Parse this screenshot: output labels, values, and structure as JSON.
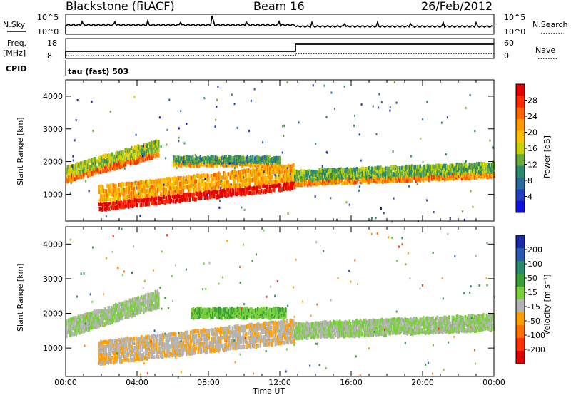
{
  "header": {
    "title": "Blackstone (fitACF)",
    "beam": "Beam 16",
    "date": "26/Feb/2012"
  },
  "noise_panel": {
    "left_label": "N.Sky",
    "right_label": "N.Search",
    "ticks": [
      "10^5",
      "10^0"
    ]
  },
  "freq_panel": {
    "left_label_1": "Freq.",
    "left_label_2": "[MHz]",
    "left_ticks": [
      "18",
      "8"
    ],
    "right_label": "Nave",
    "right_ticks": [
      "60",
      "0"
    ]
  },
  "cpid": {
    "label": "CPID",
    "value": "tau (fast) 503"
  },
  "power_panel": {
    "ylabel": "Slant Range [km]",
    "colorbar_label": "Power [dB]",
    "colorbar_ticks": [
      "28",
      "24",
      "20",
      "16",
      "12",
      "8",
      "4"
    ],
    "colorbar_colors": [
      "#e60000",
      "#ff2a00",
      "#ff6400",
      "#ff9a00",
      "#ffc000",
      "#c8d200",
      "#6aaa3a",
      "#2c8a6e",
      "#2a6aa0",
      "#2040c0",
      "#1010e0"
    ]
  },
  "velocity_panel": {
    "ylabel": "Slant Range [km]",
    "colorbar_label": "Velocity [m s⁻¹]",
    "colorbar_ticks": [
      "200",
      "100",
      "50",
      "15",
      "-15",
      "-50",
      "-100",
      "-200"
    ],
    "colorbar_colors": [
      "#1a2aa8",
      "#2a5ab0",
      "#2a8a70",
      "#3aa03a",
      "#7ad03a",
      "#b4b4b4",
      "#ffa000",
      "#ff7000",
      "#ff3000",
      "#e00000"
    ]
  },
  "xaxis": {
    "label": "Time UT",
    "ticks": [
      "00:00",
      "04:00",
      "08:00",
      "12:00",
      "16:00",
      "20:00",
      "00:00"
    ]
  },
  "chart_data": [
    {
      "type": "heatmap",
      "title": "Power",
      "ylabel": "Slant Range [km]",
      "xlabel": "Time UT",
      "ylim": [
        180,
        4500
      ],
      "yticks": [
        1000,
        2000,
        3000,
        4000
      ],
      "xlim_hours": [
        0,
        24
      ],
      "colorbar": "Power [dB]",
      "color_range": [
        0,
        30
      ],
      "bands": [
        {
          "t": [
            0,
            5.2
          ],
          "r0": [
            1400,
            2200
          ],
          "width": 500,
          "value": 18
        },
        {
          "t": [
            1.8,
            12.8
          ],
          "r0": [
            540,
            1200
          ],
          "width": 800,
          "value": 24
        },
        {
          "t": [
            6,
            12
          ],
          "r0": [
            1900,
            1900
          ],
          "width": 250,
          "value": 14
        },
        {
          "t": [
            12.8,
            24
          ],
          "r0": [
            1300,
            1550
          ],
          "width": 450,
          "value": 16
        }
      ]
    },
    {
      "type": "heatmap",
      "title": "Velocity",
      "ylabel": "Slant Range [km]",
      "xlabel": "Time UT",
      "ylim": [
        180,
        4500
      ],
      "yticks": [
        1000,
        2000,
        3000,
        4000
      ],
      "xlim_hours": [
        0,
        24
      ],
      "colorbar": "Velocity [m s⁻¹]",
      "color_range": [
        -200,
        200
      ],
      "bands": [
        {
          "t": [
            0,
            5.2
          ],
          "r0": [
            1350,
            2200
          ],
          "width": 500,
          "value": 0
        },
        {
          "t": [
            1.8,
            12.8
          ],
          "r0": [
            560,
            1200
          ],
          "width": 700,
          "value": -40
        },
        {
          "t": [
            7,
            12.3
          ],
          "r0": [
            1900,
            1900
          ],
          "width": 250,
          "value": 40
        },
        {
          "t": [
            12.8,
            24
          ],
          "r0": [
            1300,
            1550
          ],
          "width": 450,
          "value": 0
        }
      ]
    }
  ]
}
